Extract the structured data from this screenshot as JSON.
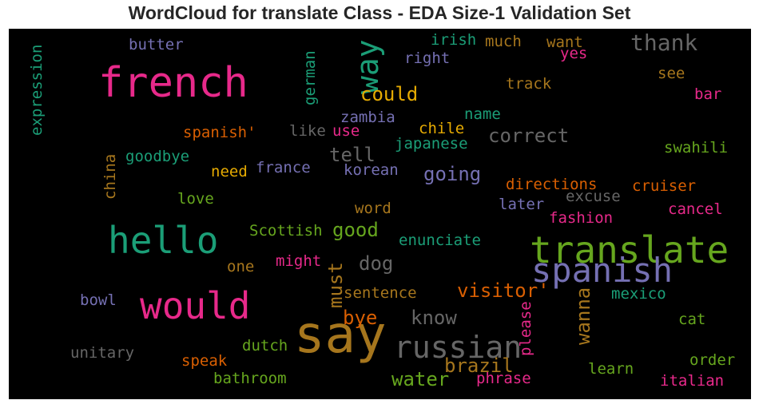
{
  "chart_data": {
    "type": "wordcloud",
    "title": "WordCloud for translate Class - EDA Size-1 Validation Set",
    "background": "#000000",
    "palette": "Dark2",
    "words": [
      {
        "text": "say",
        "weight": 1.0,
        "color": "#a6761d",
        "orientation": "horizontal"
      },
      {
        "text": "french",
        "weight": 0.82,
        "color": "#e7298a",
        "orientation": "horizontal"
      },
      {
        "text": "translate",
        "weight": 0.72,
        "color": "#66a61e",
        "orientation": "horizontal"
      },
      {
        "text": "hello",
        "weight": 0.72,
        "color": "#1b9e77",
        "orientation": "horizontal"
      },
      {
        "text": "would",
        "weight": 0.72,
        "color": "#e7298a",
        "orientation": "horizontal"
      },
      {
        "text": "spanish",
        "weight": 0.66,
        "color": "#7570b3",
        "orientation": "horizontal"
      },
      {
        "text": "russian",
        "weight": 0.6,
        "color": "#666666",
        "orientation": "horizontal"
      },
      {
        "text": "way",
        "weight": 0.6,
        "color": "#1b9e77",
        "orientation": "vertical"
      },
      {
        "text": "thank",
        "weight": 0.44,
        "color": "#666666",
        "orientation": "horizontal"
      },
      {
        "text": "could",
        "weight": 0.38,
        "color": "#e6ab02",
        "orientation": "horizontal"
      },
      {
        "text": "correct",
        "weight": 0.38,
        "color": "#666666",
        "orientation": "horizontal"
      },
      {
        "text": "going",
        "weight": 0.38,
        "color": "#7570b3",
        "orientation": "horizontal"
      },
      {
        "text": "tell",
        "weight": 0.38,
        "color": "#666666",
        "orientation": "horizontal"
      },
      {
        "text": "good",
        "weight": 0.38,
        "color": "#66a61e",
        "orientation": "horizontal"
      },
      {
        "text": "dog",
        "weight": 0.38,
        "color": "#666666",
        "orientation": "horizontal"
      },
      {
        "text": "visitor'",
        "weight": 0.38,
        "color": "#d95f02",
        "orientation": "horizontal"
      },
      {
        "text": "know",
        "weight": 0.38,
        "color": "#666666",
        "orientation": "horizontal"
      },
      {
        "text": "bye",
        "weight": 0.38,
        "color": "#d95f02",
        "orientation": "horizontal"
      },
      {
        "text": "water",
        "weight": 0.38,
        "color": "#66a61e",
        "orientation": "horizontal"
      },
      {
        "text": "brazil",
        "weight": 0.38,
        "color": "#a6761d",
        "orientation": "horizontal"
      },
      {
        "text": "must",
        "weight": 0.38,
        "color": "#a6761d",
        "orientation": "vertical"
      },
      {
        "text": "wanna",
        "weight": 0.38,
        "color": "#a6761d",
        "orientation": "vertical"
      },
      {
        "text": "irish",
        "weight": 0.3,
        "color": "#1b9e77",
        "orientation": "horizontal"
      },
      {
        "text": "much",
        "weight": 0.3,
        "color": "#a6761d",
        "orientation": "horizontal"
      },
      {
        "text": "want",
        "weight": 0.3,
        "color": "#a6761d",
        "orientation": "horizontal"
      },
      {
        "text": "butter",
        "weight": 0.3,
        "color": "#7570b3",
        "orientation": "horizontal"
      },
      {
        "text": "right",
        "weight": 0.3,
        "color": "#7570b3",
        "orientation": "horizontal"
      },
      {
        "text": "yes",
        "weight": 0.3,
        "color": "#e7298a",
        "orientation": "horizontal"
      },
      {
        "text": "see",
        "weight": 0.3,
        "color": "#a6761d",
        "orientation": "horizontal"
      },
      {
        "text": "track",
        "weight": 0.3,
        "color": "#a6761d",
        "orientation": "horizontal"
      },
      {
        "text": "bar",
        "weight": 0.3,
        "color": "#e7298a",
        "orientation": "horizontal"
      },
      {
        "text": "name",
        "weight": 0.3,
        "color": "#1b9e77",
        "orientation": "horizontal"
      },
      {
        "text": "zambia",
        "weight": 0.3,
        "color": "#7570b3",
        "orientation": "horizontal"
      },
      {
        "text": "spanish'",
        "weight": 0.3,
        "color": "#d95f02",
        "orientation": "horizontal"
      },
      {
        "text": "like",
        "weight": 0.3,
        "color": "#666666",
        "orientation": "horizontal"
      },
      {
        "text": "use",
        "weight": 0.3,
        "color": "#e7298a",
        "orientation": "horizontal"
      },
      {
        "text": "chile",
        "weight": 0.3,
        "color": "#e6ab02",
        "orientation": "horizontal"
      },
      {
        "text": "japanese",
        "weight": 0.3,
        "color": "#1b9e77",
        "orientation": "horizontal"
      },
      {
        "text": "swahili",
        "weight": 0.3,
        "color": "#66a61e",
        "orientation": "horizontal"
      },
      {
        "text": "goodbye",
        "weight": 0.3,
        "color": "#1b9e77",
        "orientation": "horizontal"
      },
      {
        "text": "need",
        "weight": 0.3,
        "color": "#e6ab02",
        "orientation": "horizontal"
      },
      {
        "text": "france",
        "weight": 0.3,
        "color": "#7570b3",
        "orientation": "horizontal"
      },
      {
        "text": "korean",
        "weight": 0.3,
        "color": "#7570b3",
        "orientation": "horizontal"
      },
      {
        "text": "directions",
        "weight": 0.3,
        "color": "#d95f02",
        "orientation": "horizontal"
      },
      {
        "text": "cruiser",
        "weight": 0.3,
        "color": "#d95f02",
        "orientation": "horizontal"
      },
      {
        "text": "excuse",
        "weight": 0.3,
        "color": "#666666",
        "orientation": "horizontal"
      },
      {
        "text": "love",
        "weight": 0.3,
        "color": "#66a61e",
        "orientation": "horizontal"
      },
      {
        "text": "later",
        "weight": 0.3,
        "color": "#7570b3",
        "orientation": "horizontal"
      },
      {
        "text": "word",
        "weight": 0.3,
        "color": "#a6761d",
        "orientation": "horizontal"
      },
      {
        "text": "cancel",
        "weight": 0.3,
        "color": "#e7298a",
        "orientation": "horizontal"
      },
      {
        "text": "fashion",
        "weight": 0.3,
        "color": "#e7298a",
        "orientation": "horizontal"
      },
      {
        "text": "Scottish",
        "weight": 0.3,
        "color": "#66a61e",
        "orientation": "horizontal"
      },
      {
        "text": "enunciate",
        "weight": 0.3,
        "color": "#1b9e77",
        "orientation": "horizontal"
      },
      {
        "text": "might",
        "weight": 0.3,
        "color": "#e7298a",
        "orientation": "horizontal"
      },
      {
        "text": "one",
        "weight": 0.3,
        "color": "#a6761d",
        "orientation": "horizontal"
      },
      {
        "text": "sentence",
        "weight": 0.3,
        "color": "#a6761d",
        "orientation": "horizontal"
      },
      {
        "text": "mexico",
        "weight": 0.3,
        "color": "#1b9e77",
        "orientation": "horizontal"
      },
      {
        "text": "bowl",
        "weight": 0.3,
        "color": "#7570b3",
        "orientation": "horizontal"
      },
      {
        "text": "cat",
        "weight": 0.3,
        "color": "#66a61e",
        "orientation": "horizontal"
      },
      {
        "text": "unitary",
        "weight": 0.3,
        "color": "#666666",
        "orientation": "horizontal"
      },
      {
        "text": "dutch",
        "weight": 0.3,
        "color": "#66a61e",
        "orientation": "horizontal"
      },
      {
        "text": "speak",
        "weight": 0.3,
        "color": "#d95f02",
        "orientation": "horizontal"
      },
      {
        "text": "order",
        "weight": 0.3,
        "color": "#66a61e",
        "orientation": "horizontal"
      },
      {
        "text": "learn",
        "weight": 0.3,
        "color": "#66a61e",
        "orientation": "horizontal"
      },
      {
        "text": "bathroom",
        "weight": 0.3,
        "color": "#66a61e",
        "orientation": "horizontal"
      },
      {
        "text": "phrase",
        "weight": 0.3,
        "color": "#e7298a",
        "orientation": "horizontal"
      },
      {
        "text": "italian",
        "weight": 0.3,
        "color": "#e7298a",
        "orientation": "horizontal"
      },
      {
        "text": "expression",
        "weight": 0.3,
        "color": "#1b9e77",
        "orientation": "vertical"
      },
      {
        "text": "german",
        "weight": 0.3,
        "color": "#1b9e77",
        "orientation": "vertical"
      },
      {
        "text": "china",
        "weight": 0.3,
        "color": "#a6761d",
        "orientation": "vertical"
      },
      {
        "text": "please",
        "weight": 0.3,
        "color": "#e7298a",
        "orientation": "vertical"
      }
    ]
  }
}
